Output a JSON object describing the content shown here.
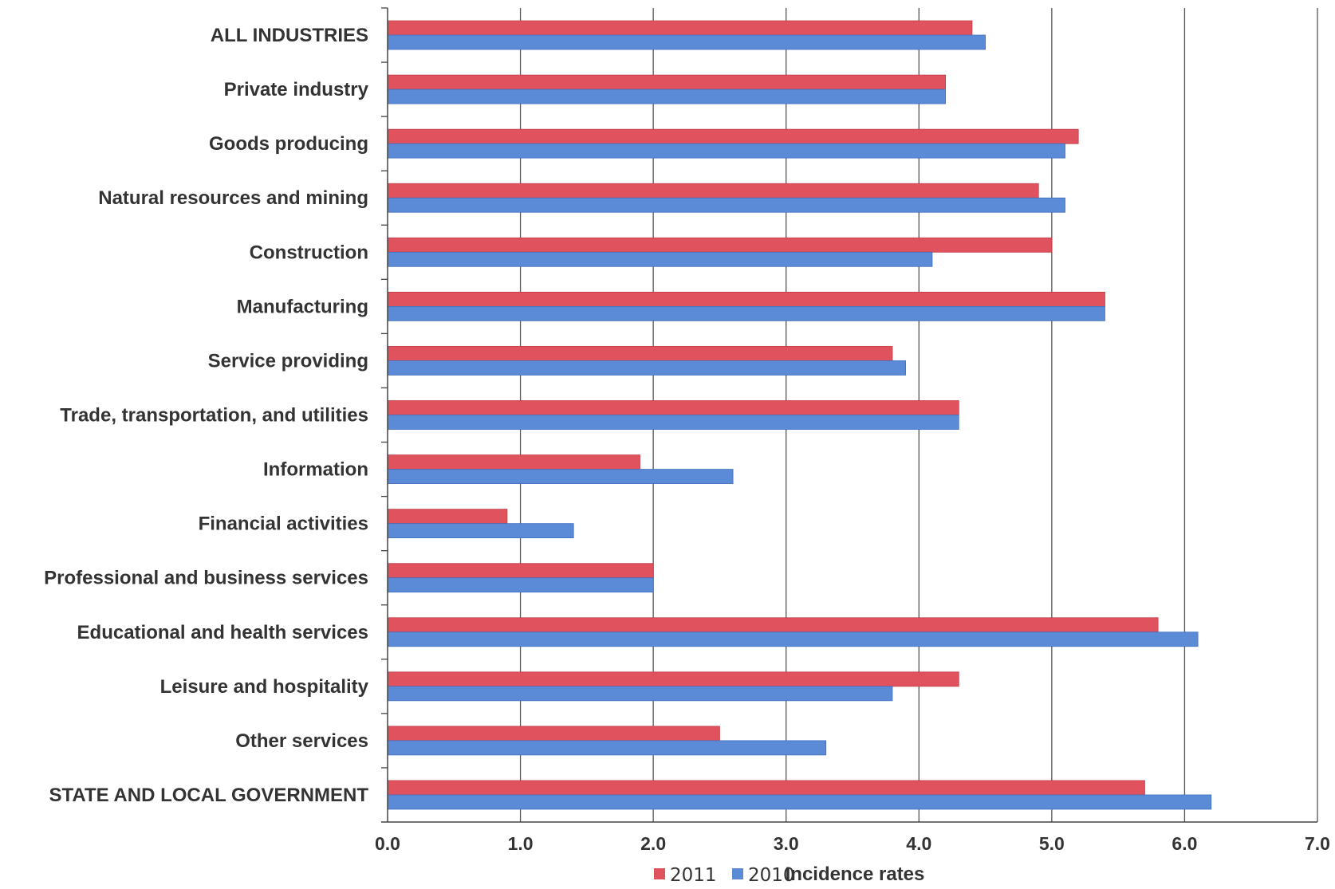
{
  "chart_data": {
    "type": "bar",
    "orientation": "horizontal",
    "categories": [
      "ALL INDUSTRIES",
      "Private industry",
      "Goods producing",
      "Natural resources and mining",
      "Construction",
      "Manufacturing",
      "Service providing",
      "Trade, transportation, and utilities",
      "Information",
      "Financial activities",
      "Professional and business services",
      "Educational and health services",
      "Leisure and hospitality",
      "Other services",
      "STATE AND LOCAL GOVERNMENT"
    ],
    "series": [
      {
        "name": "2011",
        "color": "#e0525e",
        "values": [
          4.4,
          4.2,
          5.2,
          4.9,
          5.0,
          5.4,
          3.8,
          4.3,
          1.9,
          0.9,
          2.0,
          5.8,
          4.3,
          2.5,
          5.7
        ]
      },
      {
        "name": "2010",
        "color": "#5b8ad6",
        "values": [
          4.5,
          4.2,
          5.1,
          5.1,
          4.1,
          5.4,
          3.9,
          4.3,
          2.6,
          1.4,
          2.0,
          6.1,
          3.8,
          3.3,
          6.2
        ]
      }
    ],
    "xlabel": "Incidence rates",
    "xlim": [
      0,
      7
    ],
    "xticks": [
      "0.0",
      "1.0",
      "2.0",
      "3.0",
      "4.0",
      "5.0",
      "6.0",
      "7.0"
    ],
    "grid": "vertical",
    "legend_position": "bottom"
  }
}
